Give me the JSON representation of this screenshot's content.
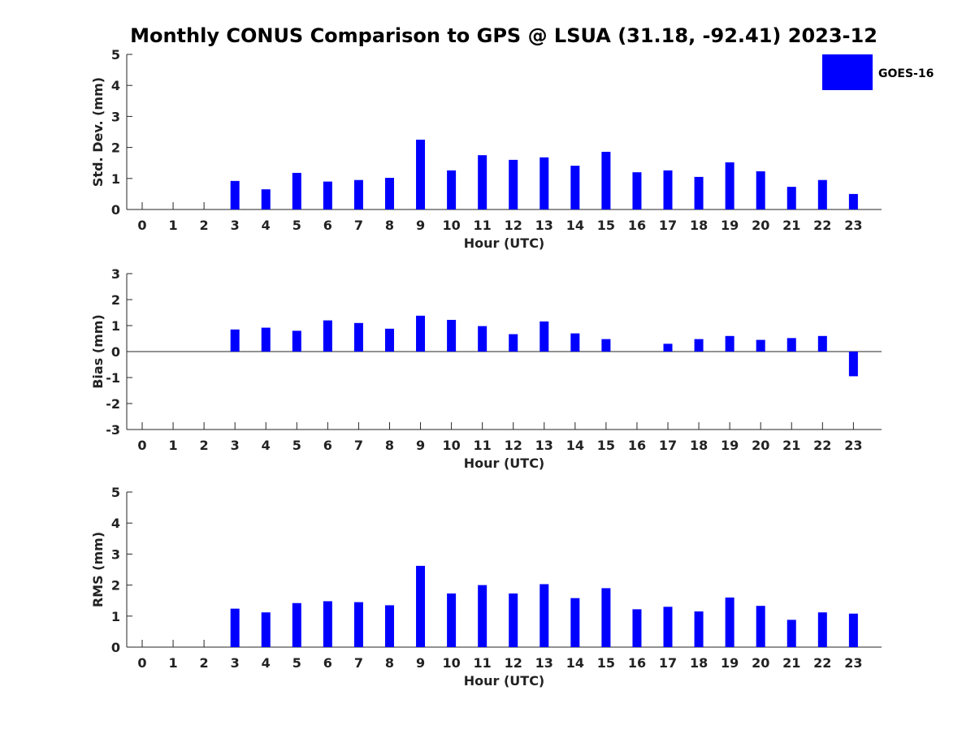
{
  "title": "Monthly CONUS Comparison to GPS @ LSUA (31.18, -92.41) 2023-12",
  "legend": {
    "label": "GOES-16",
    "color": "#0000ff",
    "placement": "top-right"
  },
  "chart_data": [
    {
      "type": "bar",
      "ylabel": "Std. Dev. (mm)",
      "xlabel": "Hour (UTC)",
      "ylim": [
        0,
        5
      ],
      "yticks": [
        0,
        1,
        2,
        3,
        4,
        5
      ],
      "categories": [
        "0",
        "1",
        "2",
        "3",
        "4",
        "5",
        "6",
        "7",
        "8",
        "9",
        "10",
        "11",
        "12",
        "13",
        "14",
        "15",
        "16",
        "17",
        "18",
        "19",
        "20",
        "21",
        "22",
        "23"
      ],
      "series": [
        {
          "name": "GOES-16",
          "color": "#0000ff",
          "values": [
            null,
            null,
            null,
            0.92,
            0.65,
            1.18,
            0.9,
            0.95,
            1.02,
            2.25,
            1.26,
            1.75,
            1.6,
            1.68,
            1.41,
            1.86,
            1.2,
            1.26,
            1.05,
            1.52,
            1.23,
            0.73,
            0.95,
            0.5
          ]
        }
      ]
    },
    {
      "type": "bar",
      "ylabel": "Bias (mm)",
      "xlabel": "Hour (UTC)",
      "ylim": [
        -3,
        3
      ],
      "yticks": [
        -3,
        -2,
        -1,
        0,
        1,
        2,
        3
      ],
      "categories": [
        "0",
        "1",
        "2",
        "3",
        "4",
        "5",
        "6",
        "7",
        "8",
        "9",
        "10",
        "11",
        "12",
        "13",
        "14",
        "15",
        "16",
        "17",
        "18",
        "19",
        "20",
        "21",
        "22",
        "23"
      ],
      "series": [
        {
          "name": "GOES-16",
          "color": "#0000ff",
          "values": [
            null,
            null,
            null,
            0.85,
            0.92,
            0.8,
            1.2,
            1.1,
            0.88,
            1.38,
            1.22,
            0.98,
            0.67,
            1.16,
            0.7,
            0.48,
            0.0,
            0.3,
            0.48,
            0.6,
            0.45,
            0.52,
            0.6,
            -0.95
          ]
        }
      ]
    },
    {
      "type": "bar",
      "ylabel": "RMS (mm)",
      "xlabel": "Hour (UTC)",
      "ylim": [
        0,
        5
      ],
      "yticks": [
        0,
        1,
        2,
        3,
        4,
        5
      ],
      "categories": [
        "0",
        "1",
        "2",
        "3",
        "4",
        "5",
        "6",
        "7",
        "8",
        "9",
        "10",
        "11",
        "12",
        "13",
        "14",
        "15",
        "16",
        "17",
        "18",
        "19",
        "20",
        "21",
        "22",
        "23"
      ],
      "series": [
        {
          "name": "GOES-16",
          "color": "#0000ff",
          "values": [
            null,
            null,
            null,
            1.24,
            1.12,
            1.42,
            1.48,
            1.45,
            1.35,
            2.62,
            1.73,
            2.0,
            1.73,
            2.03,
            1.58,
            1.9,
            1.22,
            1.3,
            1.15,
            1.6,
            1.33,
            0.88,
            1.12,
            1.08
          ]
        }
      ]
    }
  ]
}
